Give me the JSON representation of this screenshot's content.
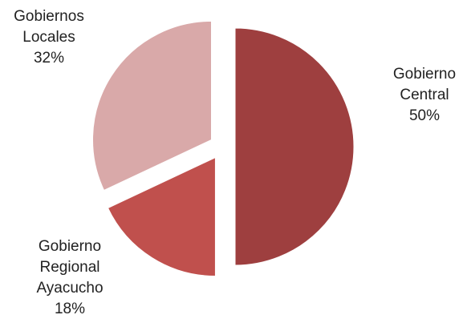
{
  "chart_data": {
    "type": "pie",
    "exploded": true,
    "legend": "none",
    "slices": [
      {
        "name": "Gobierno Central",
        "value": 50,
        "label_lines": [
          "Gobierno",
          "Central"
        ],
        "value_label": "50%",
        "color": "#9e3f3f"
      },
      {
        "name": "Gobierno Regional Ayacucho",
        "value": 18,
        "label_lines": [
          "Gobierno",
          "Regional",
          "Ayacucho"
        ],
        "value_label": "18%",
        "color": "#c0504d"
      },
      {
        "name": "Gobiernos Locales",
        "value": 32,
        "label_lines": [
          "Gobiernos",
          "Locales"
        ],
        "value_label": "32%",
        "color": "#d9a9a9"
      }
    ]
  }
}
